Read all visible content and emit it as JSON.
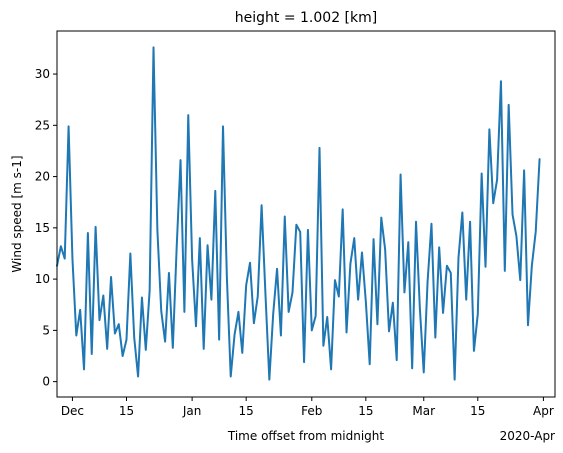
{
  "chart_data": {
    "type": "line",
    "title": "height = 1.002 [km]",
    "xlabel": "Time offset from midnight",
    "ylabel": "Wind speed [m s-1]",
    "x_offset_label": "2020-Apr",
    "grid": false,
    "legend": "none",
    "xlim": [
      "2019-11-27",
      "2020-04-04"
    ],
    "ylim": [
      -1.5,
      34.2
    ],
    "yticks": [
      0,
      5,
      10,
      15,
      20,
      25,
      30
    ],
    "xticks": [
      {
        "date": "2019-12-01",
        "label": "Dec"
      },
      {
        "date": "2019-12-15",
        "label": "15"
      },
      {
        "date": "2020-01-01",
        "label": "Jan"
      },
      {
        "date": "2020-01-15",
        "label": "15"
      },
      {
        "date": "2020-02-01",
        "label": "Feb"
      },
      {
        "date": "2020-02-15",
        "label": "15"
      },
      {
        "date": "2020-03-01",
        "label": "Mar"
      },
      {
        "date": "2020-03-15",
        "label": "15"
      },
      {
        "date": "2020-04-01",
        "label": "Apr"
      }
    ],
    "line_color": "#1f77b4",
    "series": [
      {
        "x": [
          "2019-11-27",
          "2019-11-28",
          "2019-11-29",
          "2019-11-30",
          "2019-12-01",
          "2019-12-02",
          "2019-12-03",
          "2019-12-04",
          "2019-12-05",
          "2019-12-06",
          "2019-12-07",
          "2019-12-08",
          "2019-12-09",
          "2019-12-10",
          "2019-12-11",
          "2019-12-12",
          "2019-12-13",
          "2019-12-14",
          "2019-12-15",
          "2019-12-16",
          "2019-12-17",
          "2019-12-18",
          "2019-12-19",
          "2019-12-20",
          "2019-12-21",
          "2019-12-22",
          "2019-12-23",
          "2019-12-24",
          "2019-12-25",
          "2019-12-26",
          "2019-12-27",
          "2019-12-28",
          "2019-12-29",
          "2019-12-30",
          "2019-12-31",
          "2020-01-01",
          "2020-01-02",
          "2020-01-03",
          "2020-01-04",
          "2020-01-05",
          "2020-01-06",
          "2020-01-07",
          "2020-01-08",
          "2020-01-09",
          "2020-01-10",
          "2020-01-11",
          "2020-01-12",
          "2020-01-13",
          "2020-01-14",
          "2020-01-15",
          "2020-01-16",
          "2020-01-17",
          "2020-01-18",
          "2020-01-19",
          "2020-01-20",
          "2020-01-21",
          "2020-01-22",
          "2020-01-23",
          "2020-01-24",
          "2020-01-25",
          "2020-01-26",
          "2020-01-27",
          "2020-01-28",
          "2020-01-29",
          "2020-01-30",
          "2020-01-31",
          "2020-02-01",
          "2020-02-02",
          "2020-02-03",
          "2020-02-04",
          "2020-02-05",
          "2020-02-06",
          "2020-02-07",
          "2020-02-08",
          "2020-02-09",
          "2020-02-10",
          "2020-02-11",
          "2020-02-12",
          "2020-02-13",
          "2020-02-14",
          "2020-02-15",
          "2020-02-16",
          "2020-02-17",
          "2020-02-18",
          "2020-02-19",
          "2020-02-20",
          "2020-02-21",
          "2020-02-22",
          "2020-02-23",
          "2020-02-24",
          "2020-02-25",
          "2020-02-26",
          "2020-02-27",
          "2020-02-28",
          "2020-02-29",
          "2020-03-01",
          "2020-03-02",
          "2020-03-03",
          "2020-03-04",
          "2020-03-05",
          "2020-03-06",
          "2020-03-07",
          "2020-03-08",
          "2020-03-09",
          "2020-03-10",
          "2020-03-11",
          "2020-03-12",
          "2020-03-13",
          "2020-03-14",
          "2020-03-15",
          "2020-03-16",
          "2020-03-17",
          "2020-03-18",
          "2020-03-19",
          "2020-03-20",
          "2020-03-21",
          "2020-03-22",
          "2020-03-23",
          "2020-03-24",
          "2020-03-25",
          "2020-03-26",
          "2020-03-27",
          "2020-03-28",
          "2020-03-29",
          "2020-03-30",
          "2020-03-31"
        ],
        "values": [
          11.3,
          13.2,
          12.0,
          24.9,
          12.0,
          4.5,
          7.0,
          1.2,
          14.5,
          2.7,
          15.1,
          6.0,
          8.4,
          3.2,
          10.2,
          4.7,
          5.6,
          2.5,
          4.1,
          12.5,
          4.3,
          0.5,
          8.2,
          3.1,
          8.9,
          32.6,
          14.8,
          6.9,
          3.9,
          10.6,
          3.3,
          13.1,
          21.6,
          6.8,
          26.0,
          11.9,
          5.4,
          14.0,
          3.2,
          13.3,
          8.0,
          18.6,
          4.1,
          24.9,
          10.2,
          0.5,
          4.6,
          6.8,
          2.8,
          9.4,
          11.6,
          5.7,
          8.3,
          17.2,
          8.5,
          0.2,
          6.6,
          11.0,
          4.5,
          16.1,
          6.8,
          8.7,
          15.3,
          14.6,
          1.9,
          14.8,
          5.0,
          6.4,
          22.8,
          3.5,
          6.3,
          1.2,
          9.9,
          8.3,
          16.8,
          4.8,
          11.5,
          14.0,
          8.0,
          12.6,
          7.8,
          1.7,
          13.9,
          5.6,
          16.0,
          12.9,
          4.9,
          7.7,
          2.1,
          20.2,
          8.7,
          13.6,
          1.3,
          15.6,
          7.1,
          0.9,
          9.8,
          15.4,
          4.3,
          13.1,
          6.7,
          11.3,
          10.6,
          0.2,
          12.1,
          16.5,
          8.0,
          15.6,
          3.0,
          6.6,
          20.3,
          11.2,
          24.6,
          17.4,
          19.7,
          29.3,
          10.8,
          27.0,
          16.3,
          14.2,
          9.9,
          20.6,
          5.5,
          11.3,
          14.6,
          21.7
        ]
      }
    ]
  }
}
